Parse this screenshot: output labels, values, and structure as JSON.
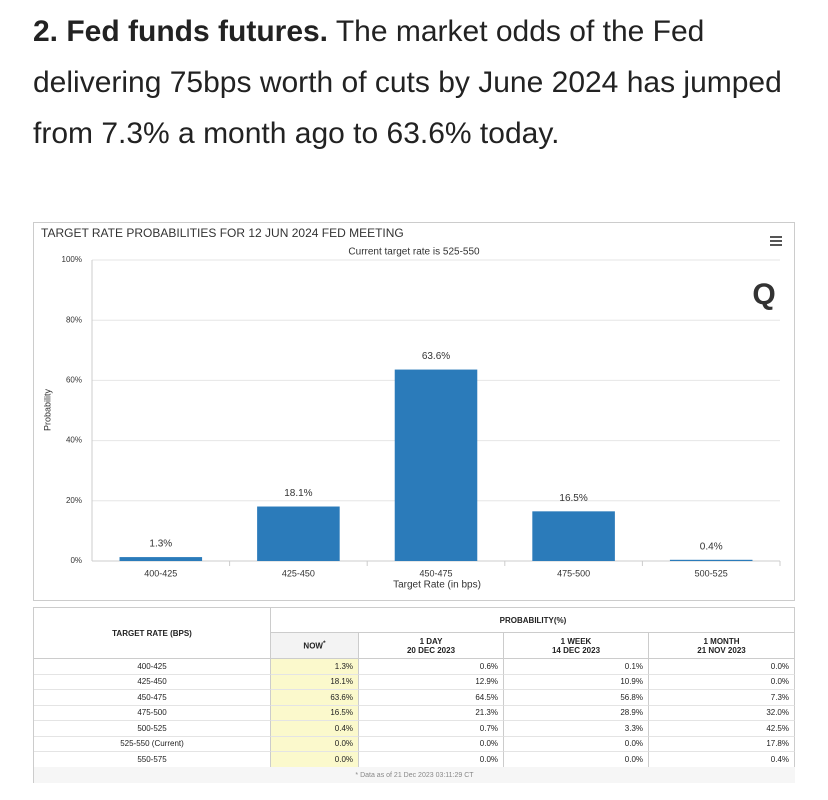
{
  "header": {
    "bold": "2. Fed funds futures.",
    "text": "The market odds of the Fed delivering 75bps worth of cuts by June 2024 has jumped from 7.3% a month ago to 63.6% today."
  },
  "chart_data": {
    "type": "bar",
    "title": "TARGET RATE PROBABILITIES FOR 12 JUN 2024 FED MEETING",
    "subtitle": "Current target rate is 525-550",
    "x_label": "Target Rate (in bps)",
    "y_label": "Probability",
    "categories": [
      "400-425",
      "425-450",
      "450-475",
      "475-500",
      "500-525"
    ],
    "values": [
      1.3,
      18.1,
      63.6,
      16.5,
      0.4
    ],
    "value_labels": [
      "1.3%",
      "18.1%",
      "63.6%",
      "16.5%",
      "0.4%"
    ],
    "color": "#2b7bba",
    "ylim": [
      0,
      100
    ],
    "yticks": [
      {
        "value": 0,
        "label": "0%"
      },
      {
        "value": 20,
        "label": "20%"
      },
      {
        "value": 40,
        "label": "40%"
      },
      {
        "value": 60,
        "label": "60%"
      },
      {
        "value": 80,
        "label": "80%"
      },
      {
        "value": 100,
        "label": "100%"
      }
    ],
    "grid": true
  },
  "table": {
    "rate_header": "TARGET RATE (BPS)",
    "prob_header": "PROBABILITY(%)",
    "columns": [
      {
        "label": "NOW",
        "note": "*"
      },
      {
        "label": "1 DAY",
        "date": "20 DEC 2023"
      },
      {
        "label": "1 WEEK",
        "date": "14 DEC 2023"
      },
      {
        "label": "1 MONTH",
        "date": "21 NOV 2023"
      }
    ],
    "rows": [
      [
        "400-425",
        "1.3%",
        "0.6%",
        "0.1%",
        "0.0%"
      ],
      [
        "425-450",
        "18.1%",
        "12.9%",
        "10.9%",
        "0.0%"
      ],
      [
        "450-475",
        "63.6%",
        "64.5%",
        "56.8%",
        "7.3%"
      ],
      [
        "475-500",
        "16.5%",
        "21.3%",
        "28.9%",
        "32.0%"
      ],
      [
        "500-525",
        "0.4%",
        "0.7%",
        "3.3%",
        "42.5%"
      ],
      [
        "525-550 (Current)",
        "0.0%",
        "0.0%",
        "0.0%",
        "17.8%"
      ],
      [
        "550-575",
        "0.0%",
        "0.0%",
        "0.0%",
        "0.4%"
      ]
    ],
    "footnote": "* Data as of 21 Dec 2023 03:11:29 CT"
  }
}
